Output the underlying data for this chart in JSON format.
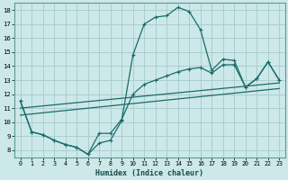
{
  "xlabel": "Humidex (Indice chaleur)",
  "ylabel": "",
  "bg_color": "#cce8e8",
  "grid_color": "#aacece",
  "line_color": "#1a6b6b",
  "xlim": [
    -0.5,
    23.5
  ],
  "ylim": [
    7.5,
    18.5
  ],
  "xticks": [
    0,
    1,
    2,
    3,
    4,
    5,
    6,
    7,
    8,
    9,
    10,
    11,
    12,
    13,
    14,
    15,
    16,
    17,
    18,
    19,
    20,
    21,
    22,
    23
  ],
  "yticks": [
    8,
    9,
    10,
    11,
    12,
    13,
    14,
    15,
    16,
    17,
    18
  ],
  "line1_x": [
    0,
    1,
    2,
    3,
    4,
    5,
    6,
    7,
    8,
    9,
    10,
    11,
    12,
    13,
    14,
    15,
    16,
    17,
    18,
    19,
    20,
    21,
    22,
    23
  ],
  "line1_y": [
    11.5,
    9.3,
    9.1,
    8.7,
    8.4,
    8.2,
    7.7,
    8.5,
    8.7,
    10.1,
    14.8,
    17.0,
    17.5,
    17.6,
    18.2,
    17.9,
    16.6,
    13.7,
    14.5,
    14.4,
    12.5,
    13.1,
    14.3,
    13.0
  ],
  "line2_x": [
    0,
    1,
    2,
    3,
    4,
    5,
    6,
    7,
    8,
    9,
    10,
    11,
    12,
    13,
    14,
    15,
    16,
    17,
    18,
    19,
    20,
    21,
    22,
    23
  ],
  "line2_y": [
    11.5,
    9.3,
    9.1,
    8.7,
    8.4,
    8.2,
    7.7,
    9.2,
    9.2,
    10.2,
    12.0,
    12.7,
    13.0,
    13.3,
    13.6,
    13.8,
    13.9,
    13.5,
    14.1,
    14.1,
    12.5,
    13.1,
    14.3,
    13.0
  ],
  "line3_x": [
    0,
    23
  ],
  "line3_y": [
    11.0,
    12.8
  ],
  "line4_x": [
    0,
    23
  ],
  "line4_y": [
    10.5,
    12.4
  ]
}
